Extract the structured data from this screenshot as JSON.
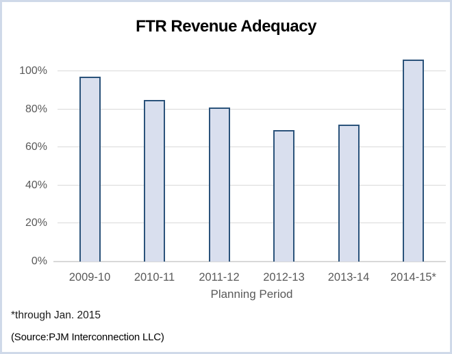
{
  "chart_data": {
    "type": "bar",
    "title": "FTR Revenue Adequacy",
    "categories": [
      "2009-10",
      "2010-11",
      "2011-12",
      "2012-13",
      "2013-14",
      "2014-15*"
    ],
    "values": [
      97,
      85,
      81,
      69,
      72,
      106
    ],
    "value_unit": "%",
    "xlabel": "Planning Period",
    "ylabel": "",
    "ylim": [
      0,
      106
    ],
    "yticks": [
      {
        "value": 0,
        "label": "0%"
      },
      {
        "value": 20,
        "label": "20%"
      },
      {
        "value": 40,
        "label": "40%"
      },
      {
        "value": 60,
        "label": "60%"
      },
      {
        "value": 80,
        "label": "80%"
      },
      {
        "value": 100,
        "label": "100%"
      }
    ],
    "grid": true,
    "legend": "none",
    "footnote": "*through Jan. 2015",
    "source": "(Source:PJM Interconnection LLC)",
    "colors": {
      "bar_fill": "#d9dfee",
      "bar_border": "#2a527a",
      "gridline": "#d9d9d9",
      "axis_line": "#d8d8d8",
      "axis_text": "#595959",
      "title_text": "#000000",
      "frame_border": "#cfd9e9"
    }
  }
}
